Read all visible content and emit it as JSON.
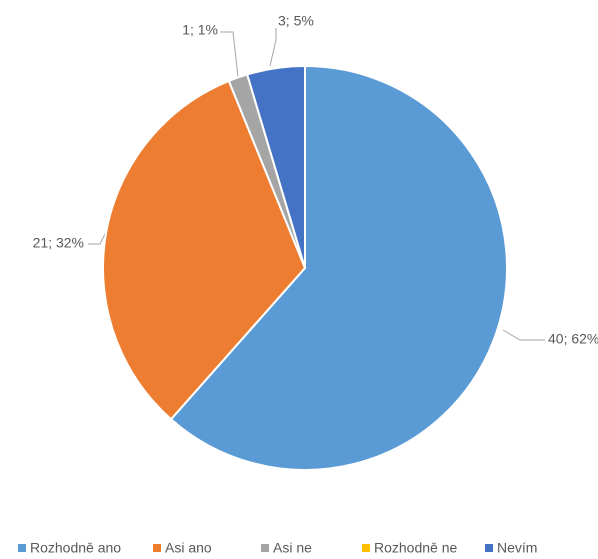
{
  "chart_data": {
    "type": "pie",
    "categories": [
      "Rozhodně ano",
      "Asi ano",
      "Asi ne",
      "Rozhodně ne",
      "Nevím"
    ],
    "values": [
      40,
      21,
      1,
      0,
      3
    ],
    "value_labels": [
      "40; 62%",
      "21; 32%",
      "1; 1%",
      null,
      "3; 5%"
    ],
    "colors": [
      "#5b9bd5",
      "#ed7d31",
      "#a5a5a5",
      "#ffc000",
      "#4472c4"
    ],
    "legend": "bottom"
  }
}
